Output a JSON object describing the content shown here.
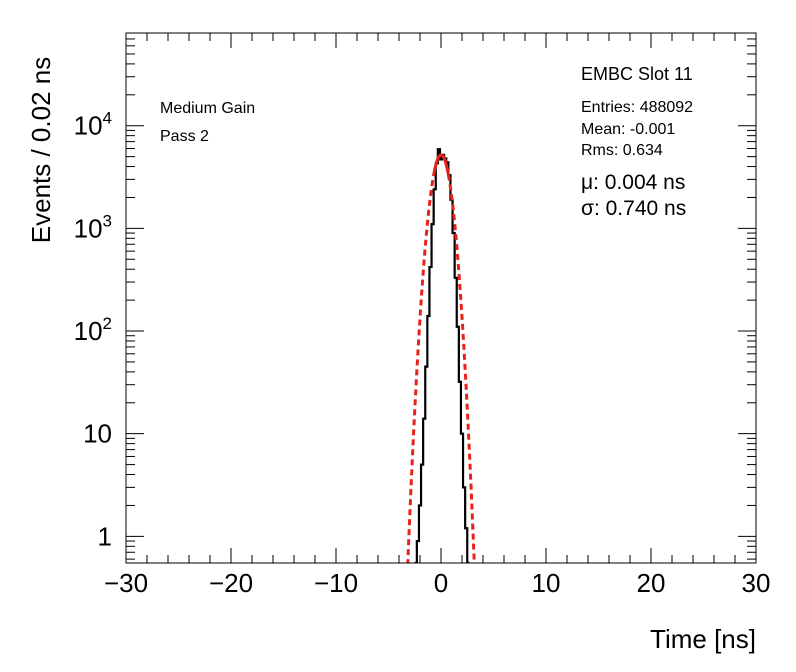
{
  "chart_data": {
    "type": "line",
    "title": "",
    "xlabel": "Time [ns]",
    "ylabel": "Events / 0.02 ns",
    "xlim": [
      -30,
      30
    ],
    "ylim": [
      0.55,
      80000
    ],
    "yscale": "log",
    "grid": false,
    "x_ticks": [
      -30,
      -20,
      -10,
      0,
      10,
      20,
      30
    ],
    "x_tick_labels": [
      "−30",
      "−20",
      "−10",
      "0",
      "10",
      "20",
      "30"
    ],
    "y_ticks": [
      1,
      10,
      100,
      1000,
      10000
    ],
    "y_tick_labels": [
      {
        "base": "1",
        "exp": ""
      },
      {
        "base": "10",
        "exp": ""
      },
      {
        "base": "10",
        "exp": "2"
      },
      {
        "base": "10",
        "exp": "3"
      },
      {
        "base": "10",
        "exp": "4"
      }
    ],
    "annotations": {
      "left": [
        "Medium Gain",
        "Pass 2"
      ],
      "slot": "EMBC Slot 11",
      "stats": [
        "Entries: 488092",
        "Mean: -0.001",
        "Rms: 0.634"
      ],
      "fit": [
        "μ: 0.004 ns",
        "σ: 0.740 ns"
      ]
    },
    "series": [
      {
        "style": "histogram",
        "color": "#000000",
        "points": [
          [
            -2.4,
            0.55
          ],
          [
            -2.2,
            0.9
          ],
          [
            -2.0,
            2
          ],
          [
            -1.8,
            5
          ],
          [
            -1.6,
            14
          ],
          [
            -1.4,
            45
          ],
          [
            -1.2,
            140
          ],
          [
            -1.0,
            420
          ],
          [
            -0.8,
            1100
          ],
          [
            -0.6,
            2400
          ],
          [
            -0.4,
            4300
          ],
          [
            -0.2,
            5900
          ],
          [
            0.0,
            4700
          ],
          [
            0.2,
            5200
          ],
          [
            0.4,
            4800
          ],
          [
            0.6,
            4400
          ],
          [
            0.8,
            3300
          ],
          [
            1.0,
            1900
          ],
          [
            1.2,
            900
          ],
          [
            1.4,
            330
          ],
          [
            1.6,
            110
          ],
          [
            1.8,
            32
          ],
          [
            2.0,
            10
          ],
          [
            2.2,
            3
          ],
          [
            2.4,
            1.2
          ],
          [
            2.6,
            0.55
          ]
        ]
      },
      {
        "style": "gaussian-fit",
        "color": "#e8211b",
        "amplitude": 5200,
        "mu": 0.004,
        "sigma": 0.74,
        "fit_range": [
          -0.7,
          0.7
        ]
      }
    ]
  }
}
